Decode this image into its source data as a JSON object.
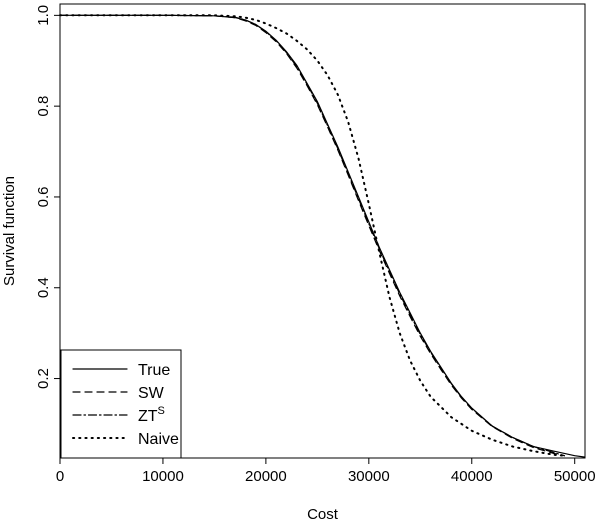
{
  "chart_data": {
    "type": "line",
    "title": "",
    "xlabel": "Cost",
    "ylabel": "Survival function",
    "xlim": [
      0,
      51000
    ],
    "ylim": [
      0.025,
      1.025
    ],
    "x_ticks": [
      0,
      10000,
      20000,
      30000,
      40000,
      50000
    ],
    "x_tick_labels": [
      "0",
      "10000",
      "20000",
      "30000",
      "40000",
      "50000"
    ],
    "y_ticks": [
      0.2,
      0.4,
      0.6,
      0.8,
      1.0
    ],
    "y_tick_labels": [
      "0.2",
      "0.4",
      "0.6",
      "0.8",
      "1.0"
    ],
    "grid": false,
    "legend_position": "bottom-left",
    "series": [
      {
        "name": "True",
        "style": "solid",
        "color": "#000000",
        "points": [
          [
            0,
            1.0
          ],
          [
            10000,
            1.0
          ],
          [
            15000,
            0.999
          ],
          [
            17000,
            0.995
          ],
          [
            18000,
            0.99
          ],
          [
            19000,
            0.98
          ],
          [
            20000,
            0.965
          ],
          [
            21000,
            0.945
          ],
          [
            22000,
            0.92
          ],
          [
            23000,
            0.89
          ],
          [
            24000,
            0.85
          ],
          [
            25000,
            0.81
          ],
          [
            26000,
            0.76
          ],
          [
            27000,
            0.71
          ],
          [
            28000,
            0.655
          ],
          [
            29000,
            0.6
          ],
          [
            30000,
            0.545
          ],
          [
            31000,
            0.49
          ],
          [
            32000,
            0.44
          ],
          [
            33000,
            0.39
          ],
          [
            34000,
            0.345
          ],
          [
            35000,
            0.3
          ],
          [
            36000,
            0.26
          ],
          [
            37000,
            0.225
          ],
          [
            38000,
            0.19
          ],
          [
            39000,
            0.16
          ],
          [
            40000,
            0.135
          ],
          [
            42000,
            0.095
          ],
          [
            44000,
            0.07
          ],
          [
            46000,
            0.05
          ],
          [
            48000,
            0.04
          ],
          [
            50000,
            0.03
          ],
          [
            51000,
            0.027
          ]
        ]
      },
      {
        "name": "SW",
        "style": "dashed",
        "color": "#000000",
        "points": [
          [
            0,
            1.0
          ],
          [
            10000,
            1.0
          ],
          [
            15000,
            0.999
          ],
          [
            17000,
            0.995
          ],
          [
            18000,
            0.988
          ],
          [
            19000,
            0.978
          ],
          [
            20000,
            0.962
          ],
          [
            21000,
            0.942
          ],
          [
            22000,
            0.916
          ],
          [
            23000,
            0.884
          ],
          [
            24000,
            0.845
          ],
          [
            25000,
            0.803
          ],
          [
            26000,
            0.754
          ],
          [
            27000,
            0.703
          ],
          [
            28000,
            0.648
          ],
          [
            29000,
            0.592
          ],
          [
            30000,
            0.537
          ],
          [
            31000,
            0.483
          ],
          [
            32000,
            0.432
          ],
          [
            33000,
            0.382
          ],
          [
            34000,
            0.337
          ],
          [
            35000,
            0.293
          ],
          [
            36000,
            0.255
          ],
          [
            37000,
            0.22
          ],
          [
            38000,
            0.186
          ],
          [
            39000,
            0.157
          ],
          [
            40000,
            0.132
          ],
          [
            42000,
            0.094
          ],
          [
            44000,
            0.068
          ],
          [
            46000,
            0.048
          ],
          [
            48000,
            0.035
          ],
          [
            49000,
            0.03
          ]
        ]
      },
      {
        "name": "ZTS",
        "legend_main": "ZT",
        "legend_sup": "S",
        "style": "dashdot",
        "color": "#000000",
        "points": [
          [
            0,
            1.0
          ],
          [
            10000,
            1.0
          ],
          [
            15000,
            0.999
          ],
          [
            17000,
            0.996
          ],
          [
            18000,
            0.99
          ],
          [
            19000,
            0.98
          ],
          [
            20000,
            0.964
          ],
          [
            21000,
            0.944
          ],
          [
            22000,
            0.918
          ],
          [
            23000,
            0.887
          ],
          [
            24000,
            0.848
          ],
          [
            25000,
            0.806
          ],
          [
            26000,
            0.757
          ],
          [
            27000,
            0.706
          ],
          [
            28000,
            0.651
          ],
          [
            29000,
            0.596
          ],
          [
            30000,
            0.541
          ],
          [
            31000,
            0.487
          ],
          [
            32000,
            0.436
          ],
          [
            33000,
            0.386
          ],
          [
            34000,
            0.341
          ],
          [
            35000,
            0.297
          ],
          [
            36000,
            0.258
          ],
          [
            37000,
            0.223
          ],
          [
            38000,
            0.189
          ],
          [
            39000,
            0.159
          ],
          [
            40000,
            0.134
          ],
          [
            42000,
            0.095
          ],
          [
            44000,
            0.07
          ],
          [
            46000,
            0.05
          ],
          [
            48000,
            0.037
          ],
          [
            49000,
            0.03
          ]
        ]
      },
      {
        "name": "Naive",
        "style": "dotted",
        "color": "#000000",
        "points": [
          [
            0,
            1.0
          ],
          [
            15000,
            1.0
          ],
          [
            17000,
            0.998
          ],
          [
            18000,
            0.995
          ],
          [
            19000,
            0.99
          ],
          [
            20000,
            0.982
          ],
          [
            21000,
            0.972
          ],
          [
            22000,
            0.96
          ],
          [
            23000,
            0.944
          ],
          [
            24000,
            0.925
          ],
          [
            25000,
            0.9
          ],
          [
            26000,
            0.868
          ],
          [
            27000,
            0.825
          ],
          [
            28000,
            0.765
          ],
          [
            29000,
            0.685
          ],
          [
            30000,
            0.585
          ],
          [
            31000,
            0.48
          ],
          [
            32000,
            0.38
          ],
          [
            33000,
            0.3
          ],
          [
            34000,
            0.24
          ],
          [
            35000,
            0.195
          ],
          [
            36000,
            0.16
          ],
          [
            38000,
            0.115
          ],
          [
            40000,
            0.085
          ],
          [
            42000,
            0.065
          ],
          [
            44000,
            0.05
          ],
          [
            46000,
            0.04
          ],
          [
            48000,
            0.032
          ],
          [
            49000,
            0.03
          ]
        ]
      }
    ]
  }
}
